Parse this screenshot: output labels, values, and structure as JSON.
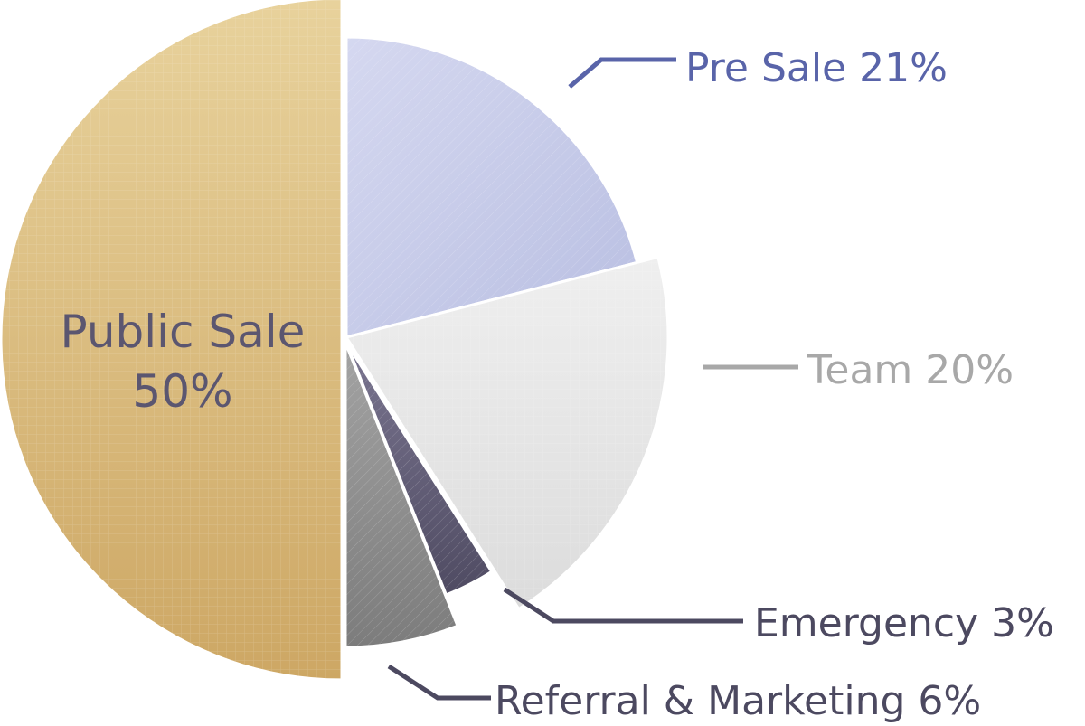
{
  "chart_data": {
    "type": "pie",
    "title": "",
    "series": [
      {
        "values": [
          50,
          21,
          20,
          3,
          6
        ],
        "slices": [
          {
            "name": "Public Sale",
            "value": 50,
            "label": "Public Sale 50%",
            "label_lines": [
              "Public Sale",
              "50%"
            ],
            "color": "#d9ba76",
            "label_color": "#5b5670"
          },
          {
            "name": "Pre Sale",
            "value": 21,
            "label": "Pre Sale 21%",
            "color": "#c6cbea",
            "label_color": "#5964a9"
          },
          {
            "name": "Team",
            "value": 20,
            "label": "Team 20%",
            "color": "#e6e6e6",
            "label_color": "#a8a8a8"
          },
          {
            "name": "Emergency",
            "value": 3,
            "label": "Emergency 3%",
            "color": "#5f5a73",
            "label_color": "#4c4960"
          },
          {
            "name": "Referral & Marketing",
            "value": 6,
            "label": "Referral & Marketing 6%",
            "color": "#8f8f8f",
            "label_color": "#4c4960"
          }
        ]
      }
    ]
  }
}
